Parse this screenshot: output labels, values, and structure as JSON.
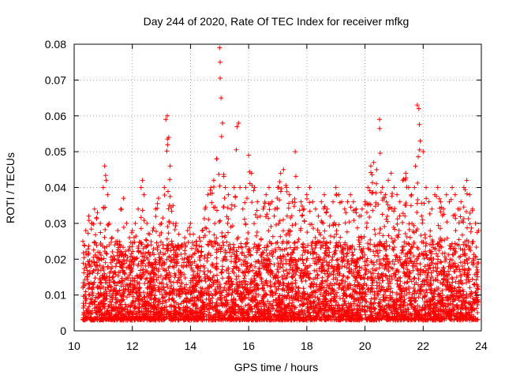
{
  "chart_data": {
    "type": "scatter",
    "title": "Day 244 of 2020, Rate Of TEC Index for receiver mfkg",
    "xlabel": "GPS time / hours",
    "ylabel": "ROTI / TECUs",
    "xlim": [
      10,
      24
    ],
    "ylim": [
      0,
      0.08
    ],
    "xticks": [
      10,
      12,
      14,
      16,
      18,
      20,
      22,
      24
    ],
    "yticks": [
      0,
      0.01,
      0.02,
      0.03,
      0.04,
      0.05,
      0.06,
      0.07,
      0.08
    ],
    "xtick_labels": [
      "10",
      "12",
      "14",
      "16",
      "18",
      "20",
      "22",
      "24"
    ],
    "ytick_labels": [
      "0",
      "0.01",
      "0.02",
      "0.03",
      "0.04",
      "0.05",
      "0.06",
      "0.07",
      "0.08"
    ],
    "grid": true,
    "marker": "plus",
    "marker_color": "#ff0000",
    "series": [
      {
        "name": "ROTI",
        "x": [
          10.3,
          10.4,
          10.5,
          10.6,
          10.7,
          10.8,
          10.9,
          11.0,
          11.05,
          11.1,
          11.15,
          11.2,
          11.3,
          11.4,
          11.5,
          11.6,
          11.7,
          11.8,
          11.9,
          12.0,
          12.1,
          12.2,
          12.3,
          12.35,
          12.4,
          12.5,
          12.6,
          12.7,
          12.8,
          12.9,
          13.0,
          13.1,
          13.15,
          13.2,
          13.25,
          13.3,
          13.4,
          13.5,
          13.6,
          13.7,
          13.8,
          13.9,
          14.0,
          14.1,
          14.2,
          14.3,
          14.4,
          14.5,
          14.6,
          14.7,
          14.8,
          14.9,
          15.0,
          15.02,
          15.05,
          15.1,
          15.2,
          15.3,
          15.4,
          15.5,
          15.6,
          15.65,
          15.7,
          15.8,
          15.9,
          16.0,
          16.1,
          16.2,
          16.3,
          16.4,
          16.5,
          16.6,
          16.7,
          16.8,
          16.9,
          17.0,
          17.1,
          17.2,
          17.3,
          17.4,
          17.5,
          17.6,
          17.7,
          17.8,
          17.9,
          18.0,
          18.1,
          18.2,
          18.3,
          18.4,
          18.5,
          18.6,
          18.7,
          18.8,
          18.9,
          19.0,
          19.1,
          19.2,
          19.3,
          19.4,
          19.5,
          19.6,
          19.7,
          19.8,
          19.9,
          20.0,
          20.1,
          20.2,
          20.3,
          20.4,
          20.5,
          20.6,
          20.7,
          20.8,
          20.9,
          21.0,
          21.1,
          21.2,
          21.3,
          21.4,
          21.5,
          21.6,
          21.7,
          21.8,
          21.85,
          21.9,
          22.0,
          22.1,
          22.2,
          22.3,
          22.4,
          22.5,
          22.6,
          22.7,
          22.8,
          22.9,
          23.0,
          23.1,
          23.2,
          23.3,
          23.4,
          23.5,
          23.6,
          23.7,
          23.8,
          23.9
        ],
        "y_upper": [
          0.025,
          0.028,
          0.032,
          0.03,
          0.034,
          0.033,
          0.03,
          0.04,
          0.046,
          0.042,
          0.038,
          0.03,
          0.026,
          0.024,
          0.028,
          0.034,
          0.037,
          0.03,
          0.026,
          0.028,
          0.03,
          0.034,
          0.04,
          0.042,
          0.038,
          0.03,
          0.027,
          0.028,
          0.034,
          0.037,
          0.03,
          0.04,
          0.059,
          0.06,
          0.054,
          0.046,
          0.035,
          0.03,
          0.027,
          0.024,
          0.026,
          0.028,
          0.03,
          0.027,
          0.025,
          0.026,
          0.028,
          0.034,
          0.038,
          0.04,
          0.042,
          0.048,
          0.079,
          0.075,
          0.065,
          0.058,
          0.04,
          0.038,
          0.034,
          0.04,
          0.057,
          0.058,
          0.04,
          0.034,
          0.04,
          0.049,
          0.044,
          0.04,
          0.036,
          0.032,
          0.034,
          0.038,
          0.04,
          0.036,
          0.034,
          0.04,
          0.044,
          0.045,
          0.04,
          0.038,
          0.036,
          0.05,
          0.04,
          0.036,
          0.034,
          0.038,
          0.04,
          0.036,
          0.034,
          0.032,
          0.036,
          0.038,
          0.034,
          0.032,
          0.036,
          0.04,
          0.038,
          0.036,
          0.034,
          0.036,
          0.038,
          0.036,
          0.034,
          0.032,
          0.034,
          0.036,
          0.04,
          0.046,
          0.047,
          0.045,
          0.059,
          0.04,
          0.038,
          0.042,
          0.044,
          0.04,
          0.038,
          0.036,
          0.042,
          0.044,
          0.04,
          0.038,
          0.04,
          0.063,
          0.062,
          0.053,
          0.05,
          0.04,
          0.036,
          0.034,
          0.038,
          0.04,
          0.036,
          0.034,
          0.038,
          0.036,
          0.04,
          0.038,
          0.034,
          0.036,
          0.04,
          0.042,
          0.038,
          0.034,
          0.03,
          0.028
        ],
        "y_lower": 0.003
      }
    ]
  }
}
